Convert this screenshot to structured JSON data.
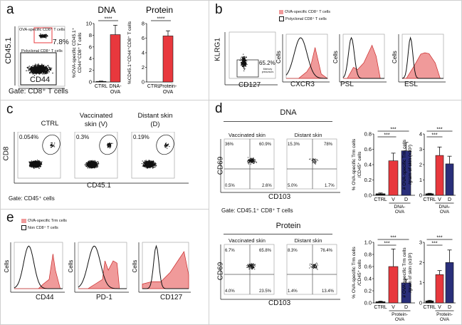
{
  "colors": {
    "red": "#e8383d",
    "navy": "#2a2f7a",
    "pink_fill": "#f09a9a",
    "pink_stroke": "#c92a2a",
    "black": "#111111",
    "border": "#cfcfcf"
  },
  "panels": {
    "a": {
      "label": "a",
      "flow": {
        "y_axis": "CD45.1",
        "x_axis": "CD44",
        "gate_ova_label": "OVA-specific CD8⁺ T cells",
        "gate_ova_pct": "7.8%",
        "gate_poly_label": "Polyclonal CD8⁺ T cells",
        "gate_note": "Gate: CD8⁺ T cells"
      }
    },
    "b": {
      "label": "b",
      "legend": [
        {
          "label": "OVA-specific CD8⁺ T cells",
          "swatch": "pink"
        },
        {
          "label": "Polyclonal CD8⁺ T cells",
          "swatch": "open"
        }
      ],
      "flow": {
        "y_axis": "KLRG1",
        "x_axis": "CD127",
        "gate_pct": "65.2%",
        "gate_label_1": "Memory",
        "gate_label_2": "precursors"
      },
      "histograms": [
        {
          "x_axis": "CXCR3",
          "y_axis": "Cells"
        },
        {
          "x_axis": "PSL",
          "y_axis": "Cells"
        },
        {
          "x_axis": "ESL",
          "y_axis": "Cells"
        }
      ]
    },
    "c": {
      "label": "c",
      "plots": [
        {
          "title_1": "CTRL",
          "title_2": "",
          "pct": "0.054%"
        },
        {
          "title_1": "Vaccinated",
          "title_2": "skin (V)",
          "pct": "0.3%"
        },
        {
          "title_1": "Distant skin",
          "title_2": "(D)",
          "pct": "0.19%"
        }
      ],
      "y_axis": "CD8",
      "x_axis": "CD45.1",
      "gate_note": "Gate: CD45⁺ cells"
    },
    "d": {
      "label": "d",
      "dna": {
        "title": "DNA",
        "plots": [
          {
            "title": "Vaccinated skin",
            "q": [
              "36%",
              "60.9%",
              "0.5%",
              "2.6%"
            ]
          },
          {
            "title": "Distant skin",
            "q": [
              "15.3%",
              "78%",
              "5.0%",
              "1.7%"
            ]
          }
        ],
        "y_axis": "CD69",
        "x_axis": "CD103",
        "gate_note": "Gate: CD45.1⁺ CD8⁺ T cells"
      },
      "protein": {
        "title": "Protein",
        "plots": [
          {
            "title": "Vaccinated skin",
            "q": [
              "6.7%",
              "65.8%",
              "4.0%",
              "23.5%"
            ]
          },
          {
            "title": "Distant skin",
            "q": [
              "8.3%",
              "76.4%",
              "1.4%",
              "13.4%"
            ]
          }
        ],
        "y_axis": "CD69",
        "x_axis": "CD103"
      }
    },
    "e": {
      "label": "e",
      "legend": [
        {
          "label": "OVA-specific Trm cells",
          "swatch": "pink"
        },
        {
          "label": "Non CD8⁺ T cells",
          "swatch": "open"
        }
      ],
      "histograms": [
        {
          "x_axis": "CD44",
          "y_axis": "Cells"
        },
        {
          "x_axis": "PD-1",
          "y_axis": "Cells"
        },
        {
          "x_axis": "CD127",
          "y_axis": "Cells"
        }
      ]
    }
  },
  "chart_data": [
    {
      "id": "a-dna",
      "type": "bar",
      "title": "DNA",
      "categories": [
        "CTRL",
        "DNA-OVA"
      ],
      "values": [
        0.1,
        8.1
      ],
      "errors": [
        0.05,
        1.6
      ],
      "colors": [
        "#111111",
        "#e8383d"
      ],
      "ylabel": "%OVA-specific CD45.1⁺ CD44⁺CD8⁺ T cells",
      "ylim": [
        0,
        10
      ],
      "yticks": [
        0,
        2,
        4,
        6,
        8,
        10
      ],
      "annotations": [
        {
          "from": 0,
          "to": 1,
          "text": "****"
        }
      ]
    },
    {
      "id": "a-protein",
      "type": "bar",
      "title": "Protein",
      "categories": [
        "CTRL",
        "Protein-OVA"
      ],
      "values": [
        0.0,
        6.3
      ],
      "errors": [
        0.0,
        0.7
      ],
      "colors": [
        "#111111",
        "#e8383d"
      ],
      "ylabel": "%CD45.1⁺CD44⁺CD8⁺ T cells",
      "ylim": [
        0,
        8
      ],
      "yticks": [
        0,
        2,
        4,
        6,
        8
      ],
      "annotations": [
        {
          "from": 0,
          "to": 1,
          "text": "****"
        }
      ]
    },
    {
      "id": "d-dna-pct",
      "type": "bar",
      "title": "",
      "categories": [
        "CTRL",
        "V",
        "D"
      ],
      "group_label": "DNA-OVA",
      "values": [
        0.02,
        0.45,
        0.58
      ],
      "errors": [
        0.01,
        0.1,
        0.11
      ],
      "colors": [
        "#111111",
        "#e8383d",
        "#2a2f7a"
      ],
      "ylabel": "% OVA-specific Trm cells /CD45⁺ cells",
      "ylim": [
        0,
        0.8
      ],
      "yticks": [
        "0.0",
        "0.2",
        "0.4",
        "0.6",
        "0.8"
      ],
      "annotations": [
        {
          "from": 0,
          "to": 1,
          "text": "***"
        },
        {
          "from": 0,
          "to": 2,
          "text": "***"
        }
      ]
    },
    {
      "id": "d-dna-num",
      "type": "bar",
      "title": "",
      "categories": [
        "CTRL",
        "V",
        "D"
      ],
      "group_label": "DNA-OVA",
      "values": [
        0.1,
        2.6,
        2.05
      ],
      "errors": [
        0.03,
        0.55,
        0.5
      ],
      "colors": [
        "#111111",
        "#e8383d",
        "#2a2f7a"
      ],
      "ylabel": "# OVA-specific Trm cells /gram of skin (x10²)",
      "ylim": [
        0,
        4
      ],
      "yticks": [
        "0",
        "1",
        "2",
        "3",
        "4"
      ],
      "annotations": [
        {
          "from": 0,
          "to": 1,
          "text": "***"
        },
        {
          "from": 0,
          "to": 2,
          "text": "***"
        }
      ]
    },
    {
      "id": "d-protein-pct",
      "type": "bar",
      "title": "",
      "categories": [
        "CTRL",
        "V",
        "D"
      ],
      "group_label": "Protein-OVA",
      "values": [
        0.02,
        0.6,
        0.33
      ],
      "errors": [
        0.01,
        0.29,
        0.06
      ],
      "colors": [
        "#111111",
        "#e8383d",
        "#2a2f7a"
      ],
      "ylabel": "% OVA-specific Trm cells /CD45⁺ cells",
      "ylim": [
        0,
        1.0
      ],
      "yticks": [
        "0.0",
        "0.2",
        "0.4",
        "0.6",
        "0.8",
        "1.0"
      ],
      "annotations": [
        {
          "from": 0,
          "to": 1,
          "text": "***"
        },
        {
          "from": 0,
          "to": 2,
          "text": "***"
        }
      ]
    },
    {
      "id": "d-protein-num",
      "type": "bar",
      "title": "",
      "categories": [
        "CTRL",
        "V",
        "D"
      ],
      "group_label": "Protein-OVA",
      "values": [
        0.1,
        1.4,
        2.0
      ],
      "errors": [
        0.03,
        0.2,
        0.62
      ],
      "colors": [
        "#111111",
        "#e8383d",
        "#2a2f7a"
      ],
      "ylabel": "# OVA-specific Trm cells /gram of skin (x10²)",
      "ylim": [
        0,
        3
      ],
      "yticks": [
        "0",
        "1",
        "2",
        "3"
      ],
      "annotations": [
        {
          "from": 0,
          "to": 1,
          "text": "***"
        },
        {
          "from": 0,
          "to": 2,
          "text": "***"
        }
      ]
    }
  ]
}
